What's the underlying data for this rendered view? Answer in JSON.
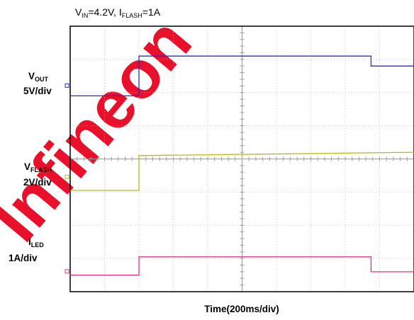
{
  "chart_data": {
    "type": "line",
    "title": {
      "v_label": "V",
      "v_sub": "IN",
      "v_value": "=4.2V, ",
      "i_label": "I",
      "i_sub": "FLASH",
      "i_value": "=1A"
    },
    "xlabel": "Time(200ms/div)",
    "x_units_per_div": "200ms",
    "x_divisions": 10,
    "y_divisions": 8,
    "xlim": [
      0,
      2000
    ],
    "grid": true,
    "series": [
      {
        "label": "V",
        "label_sub": "OUT",
        "scale": "5V/div",
        "color": "#2b2bd6",
        "x": [
          0,
          400,
          400,
          1750,
          1750,
          2000
        ],
        "y": [
          -0.3,
          -0.3,
          0.9,
          0.9,
          0.6,
          0.6
        ]
      },
      {
        "label": "V",
        "label_sub": "FLASH",
        "scale": "2V/div",
        "color": "#b8b81e",
        "x": [
          0,
          400,
          400,
          2000
        ],
        "y": [
          -0.4,
          -0.4,
          0.65,
          0.75
        ]
      },
      {
        "label": "I",
        "label_sub": "LED",
        "scale": "1A/div",
        "color": "#e0318a",
        "x": [
          0,
          400,
          400,
          1750,
          1750,
          2000
        ],
        "y": [
          -0.1,
          -0.1,
          0.45,
          0.45,
          0.0,
          0.0
        ]
      }
    ]
  },
  "watermark": "Infineon"
}
